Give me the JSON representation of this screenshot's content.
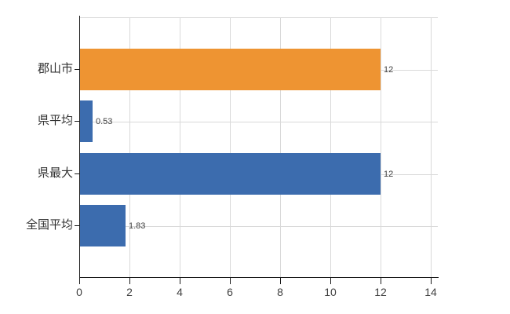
{
  "chart_data": {
    "type": "bar",
    "orientation": "horizontal",
    "title": "",
    "xlabel": "",
    "ylabel": "",
    "categories": [
      "郡山市",
      "県平均",
      "県最大",
      "全国平均"
    ],
    "values": [
      12,
      0.53,
      12,
      1.83
    ],
    "value_labels": [
      "12",
      "0.53",
      "12",
      "1.83"
    ],
    "bar_colors": [
      "#ee9432",
      "#3c6cae",
      "#3c6cae",
      "#3c6cae"
    ],
    "x_ticks": [
      0,
      2,
      4,
      6,
      8,
      10,
      12,
      14
    ],
    "x_tick_labels": [
      "0",
      "2",
      "4",
      "6",
      "8",
      "10",
      "12",
      "14"
    ],
    "xlim": [
      0,
      14
    ],
    "grid": true,
    "legend": "none",
    "colors": {
      "background": "#ffffff",
      "gridline": "#d9d9d9",
      "axis": "#1a1a1a",
      "tick_label": "#404040",
      "category_label": "#333333",
      "value_label": "#404040",
      "orange_series": "#ee9432",
      "blue_series": "#3c6cae"
    }
  }
}
